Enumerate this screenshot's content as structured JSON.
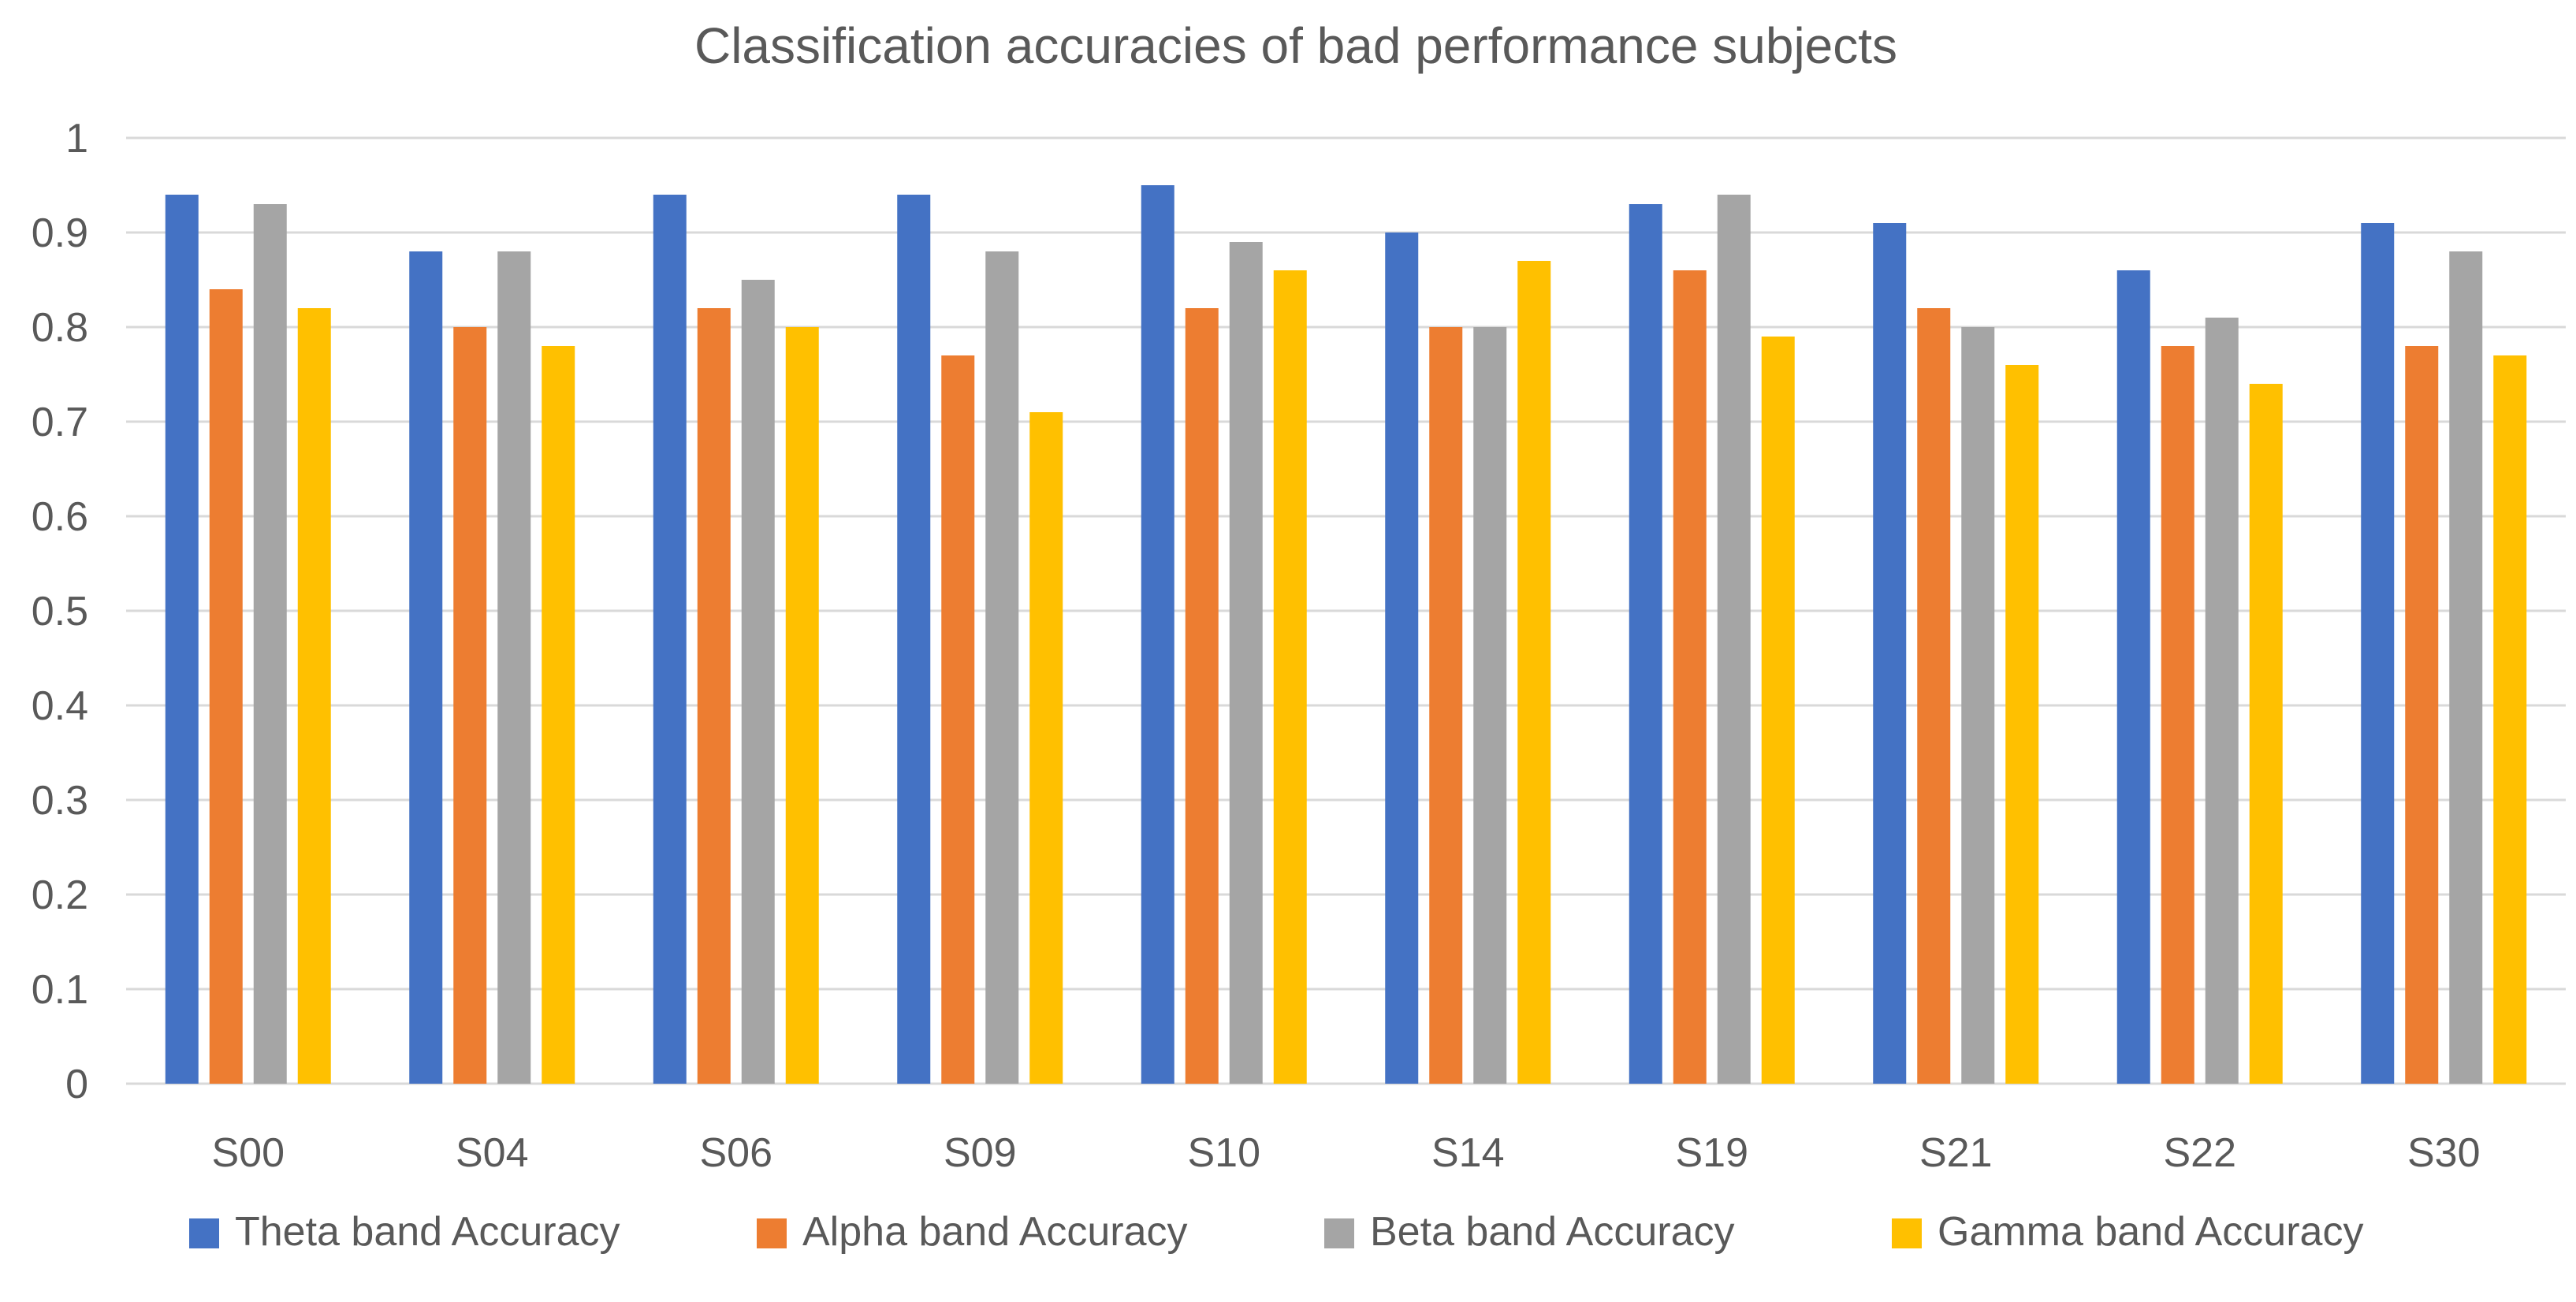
{
  "chart_data": {
    "type": "bar",
    "title": "Classification accuracies of bad performance subjects",
    "xlabel": "",
    "ylabel": "",
    "ylim": [
      0,
      1
    ],
    "yticks": [
      "0",
      "0.1",
      "0.2",
      "0.3",
      "0.4",
      "0.5",
      "0.6",
      "0.7",
      "0.8",
      "0.9",
      "1"
    ],
    "grid": true,
    "legend_position": "bottom",
    "categories": [
      "S00",
      "S04",
      "S06",
      "S09",
      "S10",
      "S14",
      "S19",
      "S21",
      "S22",
      "S30"
    ],
    "series": [
      {
        "name": "Theta band Accuracy",
        "color": "#4472c4",
        "values": [
          0.94,
          0.88,
          0.94,
          0.94,
          0.95,
          0.9,
          0.93,
          0.91,
          0.86,
          0.91
        ]
      },
      {
        "name": "Alpha band Accuracy",
        "color": "#ed7d31",
        "values": [
          0.84,
          0.8,
          0.82,
          0.77,
          0.82,
          0.8,
          0.86,
          0.82,
          0.78,
          0.78
        ]
      },
      {
        "name": "Beta band Accuracy",
        "color": "#a5a5a5",
        "values": [
          0.93,
          0.88,
          0.85,
          0.88,
          0.89,
          0.8,
          0.94,
          0.8,
          0.81,
          0.88
        ]
      },
      {
        "name": "Gamma band Accuracy",
        "color": "#ffc000",
        "values": [
          0.82,
          0.78,
          0.8,
          0.71,
          0.86,
          0.87,
          0.79,
          0.76,
          0.74,
          0.77
        ]
      }
    ]
  }
}
